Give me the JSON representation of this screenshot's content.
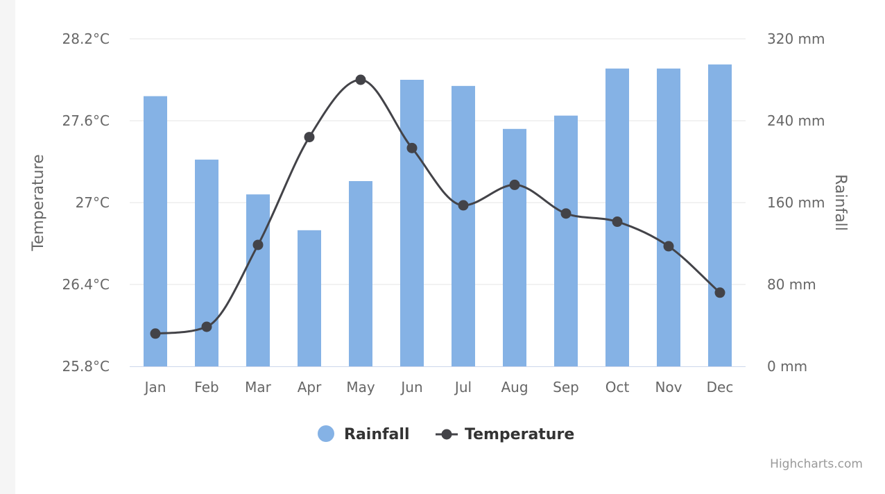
{
  "chart_data": {
    "type": "bar",
    "categories": [
      "Jan",
      "Feb",
      "Mar",
      "Apr",
      "May",
      "Jun",
      "Jul",
      "Aug",
      "Sep",
      "Oct",
      "Nov",
      "Dec"
    ],
    "series": [
      {
        "name": "Rainfall",
        "type": "bar",
        "axis": "right",
        "unit": "mm",
        "color": "#85b2e5",
        "values": [
          264,
          202,
          168,
          133,
          181,
          280,
          274,
          232,
          245,
          291,
          291,
          295
        ]
      },
      {
        "name": "Temperature",
        "type": "line",
        "smooth": true,
        "axis": "left",
        "unit": "°C",
        "color": "#434348",
        "values": [
          26.04,
          26.09,
          26.69,
          27.48,
          27.9,
          27.4,
          26.98,
          27.13,
          26.92,
          26.86,
          26.68,
          26.34
        ]
      }
    ],
    "y_left": {
      "title": "Temperature",
      "min": 25.8,
      "max": 28.2,
      "ticks": [
        25.8,
        26.4,
        27,
        27.6,
        28.2
      ],
      "tick_labels": [
        "25.8°C",
        "26.4°C",
        "27°C",
        "27.6°C",
        "28.2°C"
      ]
    },
    "y_right": {
      "title": "Rainfall",
      "min": 0,
      "max": 320,
      "ticks": [
        0,
        80,
        160,
        240,
        320
      ],
      "tick_labels": [
        "0 mm",
        "80 mm",
        "160 mm",
        "240 mm",
        "320 mm"
      ]
    },
    "grid": true,
    "legend": {
      "position": "bottom-center",
      "items": [
        "Rainfall",
        "Temperature"
      ]
    },
    "credits": "Highcharts.com"
  }
}
